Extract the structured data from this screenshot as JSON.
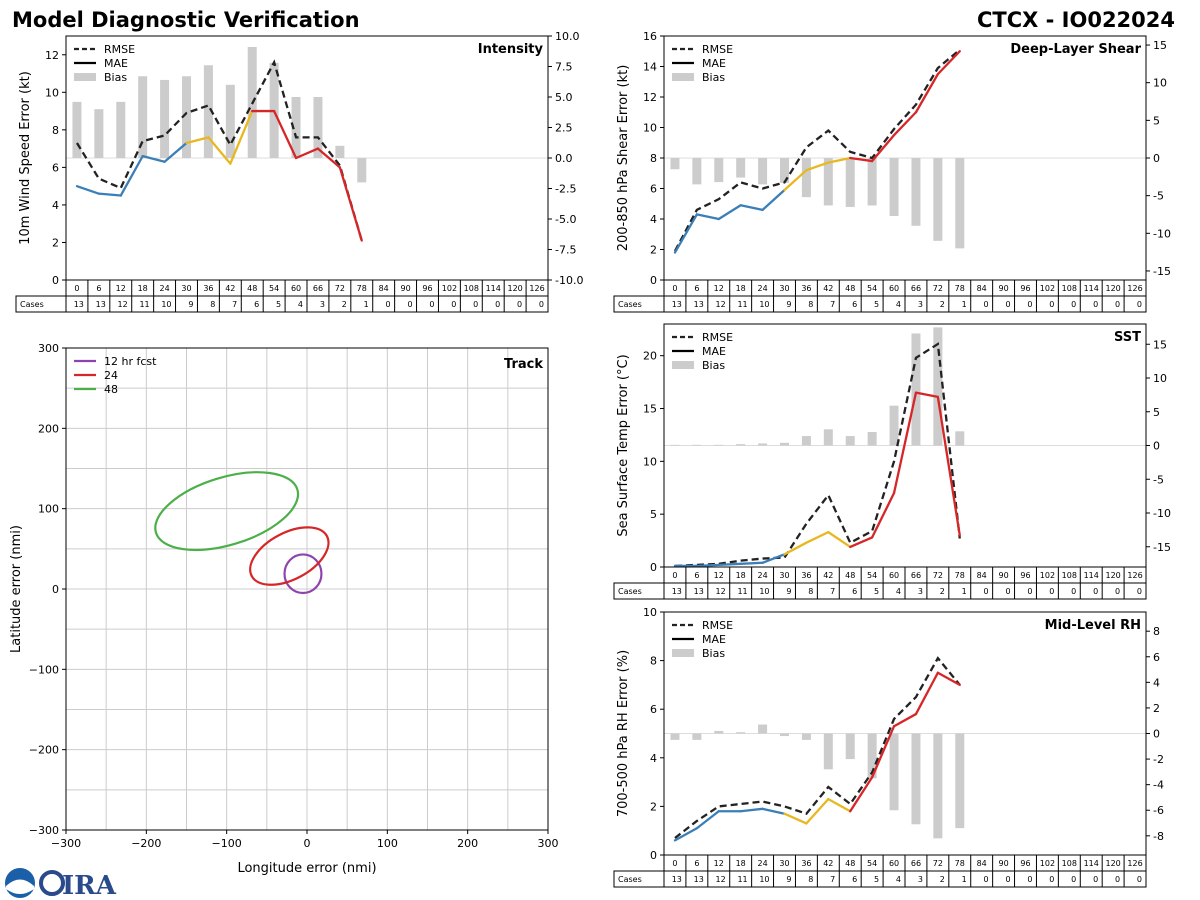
{
  "header": {
    "title": "Model Diagnostic Verification",
    "storm_id": "CTCX - IO022024"
  },
  "lead_hours": [
    "0",
    "6",
    "12",
    "18",
    "24",
    "30",
    "36",
    "42",
    "48",
    "54",
    "60",
    "66",
    "72",
    "78",
    "84",
    "90",
    "96",
    "102",
    "108",
    "114",
    "120",
    "126"
  ],
  "cases": [
    "13",
    "13",
    "12",
    "11",
    "10",
    "9",
    "8",
    "7",
    "6",
    "5",
    "4",
    "3",
    "2",
    "1",
    "0",
    "0",
    "0",
    "0",
    "0",
    "0",
    "0",
    "0"
  ],
  "cases_label": "Cases",
  "legend_labels": {
    "rmse": "RMSE",
    "mae": "MAE",
    "bias": "Bias"
  },
  "colors": {
    "rmse": "#222222",
    "mae_early": "#3a7fb8",
    "mae_mid": "#e8b820",
    "mae_late": "#d62728",
    "bias": "#cccccc",
    "grid": "#cccccc",
    "track_12": "#8e44ad",
    "track_24": "#d62728",
    "track_48": "#4daf4a"
  },
  "chart_data": [
    {
      "id": "intensity",
      "type": "line",
      "title": "Intensity",
      "ylabel": "10m Wind Speed Error (kt)",
      "ylim": [
        0,
        13
      ],
      "yticks": [
        0,
        2,
        4,
        6,
        8,
        10,
        12
      ],
      "y2lim": [
        -10,
        10
      ],
      "y2ticks": [
        "-10.0",
        "-7.5",
        "-5.0",
        "-2.5",
        "0.0",
        "2.5",
        "5.0",
        "7.5",
        "10.0"
      ],
      "y2tick_values": [
        -10,
        -7.5,
        -5,
        -2.5,
        0,
        2.5,
        5,
        7.5,
        10
      ],
      "x": [
        0,
        6,
        12,
        18,
        24,
        30,
        36,
        42,
        48,
        54,
        60,
        66,
        72,
        78
      ],
      "rmse": [
        7.3,
        5.4,
        4.9,
        7.4,
        7.7,
        8.9,
        9.3,
        7.2,
        9.4,
        11.6,
        7.6,
        7.6,
        6.1,
        2.1
      ],
      "mae": [
        5.0,
        4.6,
        4.5,
        6.6,
        6.3,
        7.3,
        7.6,
        6.2,
        9.0,
        9.0,
        6.5,
        7.0,
        6.0,
        2.1
      ],
      "bias": [
        4.6,
        4.0,
        4.6,
        6.7,
        6.4,
        6.7,
        7.6,
        6.0,
        9.1,
        7.8,
        5.0,
        5.0,
        1.0,
        -2.0
      ]
    },
    {
      "id": "shear",
      "type": "line",
      "title": "Deep-Layer Shear",
      "ylabel": "200-850 hPa Shear Error (kt)",
      "ylim": [
        0,
        16
      ],
      "yticks": [
        0,
        2,
        4,
        6,
        8,
        10,
        12,
        14,
        16
      ],
      "y2lim": [
        -16.2,
        16.2
      ],
      "y2ticks": [
        "-15",
        "-10",
        "-5",
        "0",
        "5",
        "10",
        "15"
      ],
      "y2tick_values": [
        -15,
        -10,
        -5,
        0,
        5,
        10,
        15
      ],
      "x": [
        0,
        6,
        12,
        18,
        24,
        30,
        36,
        42,
        48,
        54,
        60,
        66,
        72,
        78
      ],
      "rmse": [
        1.9,
        4.6,
        5.3,
        6.4,
        6.0,
        6.4,
        8.7,
        9.8,
        8.4,
        8.0,
        9.9,
        11.5,
        13.9,
        15.1
      ],
      "mae": [
        1.8,
        4.3,
        4.0,
        4.9,
        4.6,
        5.9,
        7.2,
        7.7,
        8.0,
        7.8,
        9.5,
        11.0,
        13.5,
        15.0
      ],
      "bias": [
        -1.5,
        -3.5,
        -3.2,
        -2.6,
        -3.5,
        -3.3,
        -5.2,
        -6.3,
        -6.5,
        -6.3,
        -7.7,
        -9.0,
        -11.0,
        -12.0
      ]
    },
    {
      "id": "sst",
      "type": "line",
      "title": "SST",
      "ylabel": "Sea Surface Temp Error (°C)",
      "ylim": [
        0,
        23
      ],
      "yticks": [
        0,
        5,
        10,
        15,
        20
      ],
      "y2lim": [
        -18,
        18
      ],
      "y2ticks": [
        "-15",
        "-10",
        "-5",
        "0",
        "5",
        "10",
        "15"
      ],
      "y2tick_values": [
        -15,
        -10,
        -5,
        0,
        5,
        10,
        15
      ],
      "x": [
        0,
        6,
        12,
        18,
        24,
        30,
        36,
        42,
        48,
        54,
        60,
        66,
        72,
        78
      ],
      "rmse": [
        0.1,
        0.2,
        0.3,
        0.6,
        0.8,
        0.9,
        4.1,
        6.8,
        2.3,
        3.4,
        10.0,
        19.8,
        21.1,
        2.7
      ],
      "mae": [
        0.1,
        0.1,
        0.2,
        0.3,
        0.4,
        1.2,
        2.3,
        3.3,
        1.9,
        2.8,
        7.0,
        16.5,
        16.1,
        3.0
      ],
      "bias": [
        0.1,
        0.1,
        0.1,
        0.2,
        0.3,
        0.4,
        1.4,
        2.4,
        1.4,
        2.0,
        5.9,
        16.6,
        17.5,
        2.1
      ]
    },
    {
      "id": "midrh",
      "type": "line",
      "title": "Mid-Level RH",
      "ylabel": "700-500 hPa RH Error (%)",
      "ylim": [
        0,
        10
      ],
      "yticks": [
        0,
        2,
        4,
        6,
        8,
        10
      ],
      "y2lim": [
        -9.5,
        9.5
      ],
      "y2ticks": [
        "-8",
        "-6",
        "-4",
        "-2",
        "0",
        "2",
        "4",
        "6",
        "8"
      ],
      "y2tick_values": [
        -8,
        -6,
        -4,
        -2,
        0,
        2,
        4,
        6,
        8
      ],
      "x": [
        0,
        6,
        12,
        18,
        24,
        30,
        36,
        42,
        48,
        54,
        60,
        66,
        72,
        78
      ],
      "rmse": [
        0.7,
        1.4,
        2.0,
        2.1,
        2.2,
        2.0,
        1.7,
        2.8,
        2.1,
        3.4,
        5.6,
        6.5,
        8.1,
        7.0
      ],
      "mae": [
        0.6,
        1.1,
        1.8,
        1.8,
        1.9,
        1.7,
        1.3,
        2.3,
        1.8,
        3.2,
        5.3,
        5.8,
        7.5,
        7.0
      ],
      "bias": [
        -0.5,
        -0.5,
        0.2,
        0.1,
        0.7,
        -0.2,
        -0.5,
        -2.8,
        -2.0,
        -3.5,
        -6.0,
        -7.1,
        -8.2,
        -7.4
      ]
    },
    {
      "id": "track",
      "type": "scatter",
      "title": "Track",
      "xlabel": "Longitude error (nmi)",
      "ylabel": "Latitude error (nmi)",
      "xlim": [
        -300,
        300
      ],
      "ylim": [
        -300,
        300
      ],
      "ticks": [
        -300,
        -200,
        -100,
        0,
        100,
        200,
        300
      ],
      "grid": [
        -250,
        -200,
        -150,
        -100,
        -50,
        0,
        50,
        100,
        150,
        200,
        250
      ],
      "ellipses": [
        {
          "label": "12 hr fcst",
          "cx": -5,
          "cy": 19,
          "rx": 23,
          "ry": 24,
          "angle": 0
        },
        {
          "label": "24",
          "cx": -22,
          "cy": 41,
          "rx": 53,
          "ry": 29,
          "angle": -28
        },
        {
          "label": "48",
          "cx": -100,
          "cy": 97,
          "rx": 92,
          "ry": 42,
          "angle": -17
        }
      ]
    }
  ]
}
